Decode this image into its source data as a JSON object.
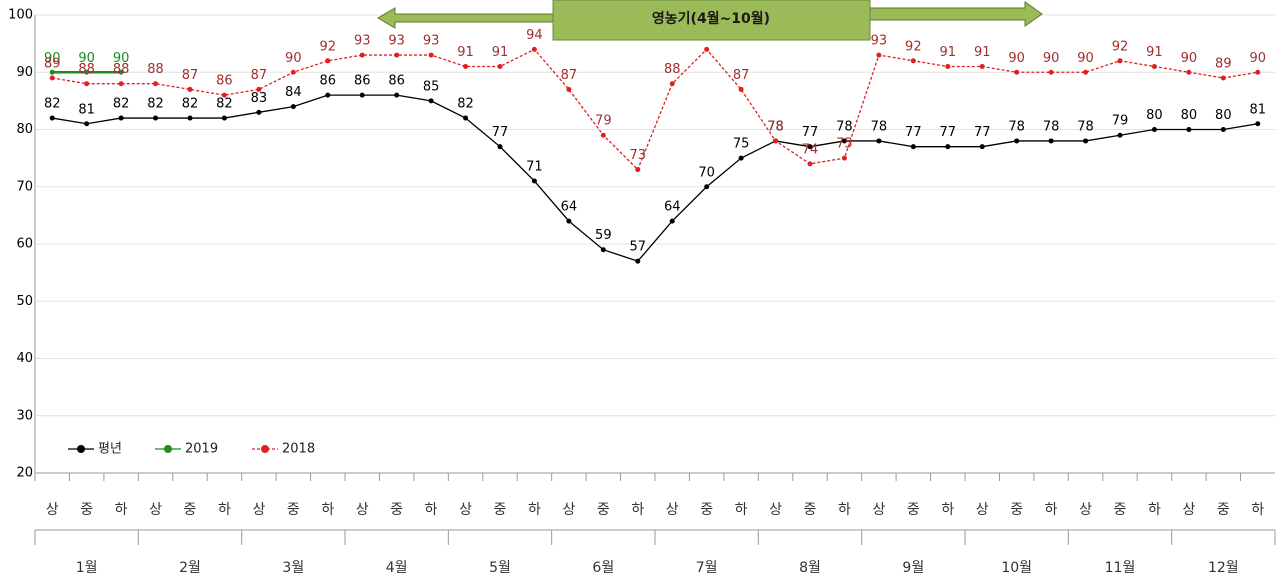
{
  "chart_data": {
    "type": "line",
    "annotation": "영농기(4월~10월)",
    "categories": [
      "상",
      "중",
      "하",
      "상",
      "중",
      "하",
      "상",
      "중",
      "하",
      "상",
      "중",
      "하",
      "상",
      "중",
      "하",
      "상",
      "중",
      "하",
      "상",
      "중",
      "하",
      "상",
      "중",
      "하",
      "상",
      "중",
      "하",
      "상",
      "중",
      "하",
      "상",
      "중",
      "하",
      "상",
      "중",
      "하"
    ],
    "groups": [
      "1월",
      "2월",
      "3월",
      "4월",
      "5월",
      "6월",
      "7월",
      "8월",
      "9월",
      "10월",
      "11월",
      "12월"
    ],
    "series": [
      {
        "name": "평년",
        "color": "#000000",
        "label_color": "#000000",
        "dashed": false,
        "values": [
          82,
          81,
          82,
          82,
          82,
          82,
          83,
          84,
          86,
          86,
          86,
          85,
          82,
          77,
          71,
          64,
          59,
          57,
          64,
          70,
          75,
          78,
          77,
          78,
          78,
          77,
          77,
          77,
          78,
          78,
          78,
          79,
          80,
          80,
          80,
          81
        ]
      },
      {
        "name": "2019",
        "color": "#1e8c1e",
        "label_color": "#1e8c1e",
        "dashed": false,
        "values": [
          90,
          90,
          90,
          null,
          null,
          null,
          null,
          null,
          null,
          null,
          null,
          null,
          null,
          null,
          null,
          null,
          null,
          null,
          null,
          null,
          null,
          null,
          null,
          null,
          null,
          null,
          null,
          null,
          null,
          null,
          null,
          null,
          null,
          null,
          null,
          null
        ]
      },
      {
        "name": "2018",
        "color": "#e02020",
        "label_color": "#a03030",
        "dashed": true,
        "values": [
          89,
          88,
          88,
          88,
          87,
          86,
          87,
          90,
          92,
          93,
          93,
          93,
          91,
          91,
          94,
          87,
          79,
          73,
          88,
          94,
          87,
          78,
          74,
          75,
          93,
          92,
          91,
          91,
          90,
          90,
          90,
          92,
          91,
          90,
          89,
          90
        ]
      }
    ],
    "ylim": [
      20,
      100
    ],
    "yticks": [
      20,
      30,
      40,
      50,
      60,
      70,
      80,
      90,
      100
    ],
    "grid": true,
    "legend": "lower left"
  }
}
